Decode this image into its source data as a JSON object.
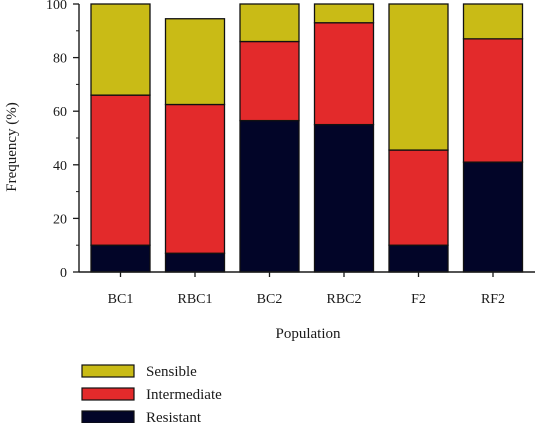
{
  "chart_data": {
    "type": "bar",
    "stacked": true,
    "xlabel": "Population",
    "ylabel": "Frequency (%)",
    "ylim": [
      0,
      100
    ],
    "yticks": [
      0,
      20,
      40,
      60,
      80,
      100
    ],
    "grid": false,
    "legend_position": "bottom-left",
    "categories": [
      "BC1",
      "RBC1",
      "BC2",
      "RBC2",
      "F2",
      "RF2"
    ],
    "series": [
      {
        "name": "Resistant",
        "color": "#020528",
        "values": [
          10,
          7,
          56.5,
          55,
          10,
          41
        ]
      },
      {
        "name": "Intermediate",
        "color": "#e32a2b",
        "values": [
          56,
          55.5,
          29.5,
          38,
          35.5,
          46
        ]
      },
      {
        "name": "Sensible",
        "color": "#c9bb16",
        "values": [
          34,
          32,
          14,
          7,
          54.5,
          13
        ]
      }
    ],
    "legend_order": [
      "Sensible",
      "Intermediate",
      "Resistant"
    ]
  }
}
